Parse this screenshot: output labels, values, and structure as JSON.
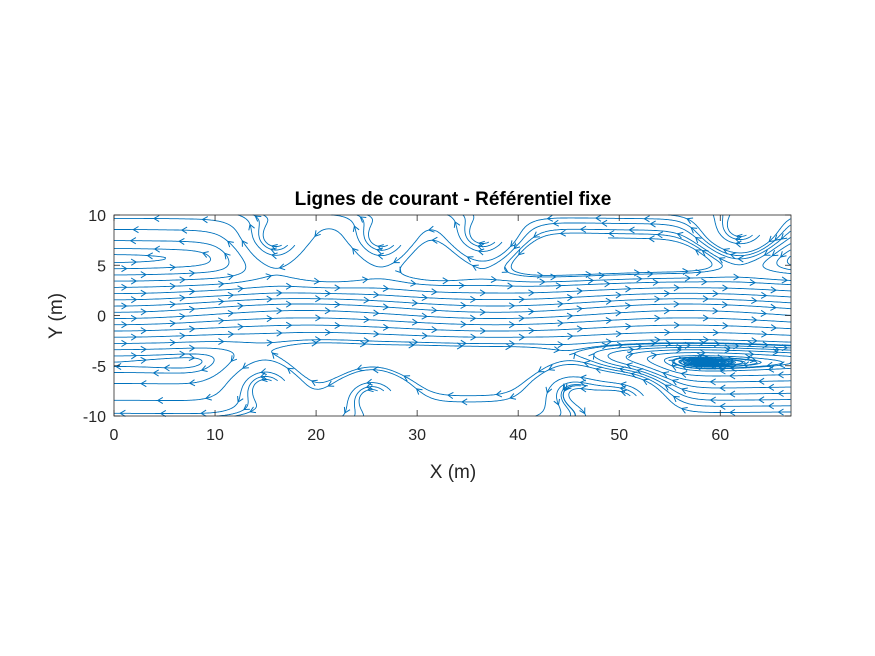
{
  "chart_data": {
    "type": "streamline",
    "title": "Lignes de courant - Référentiel fixe",
    "xlabel": "X (m)",
    "ylabel": "Y (m)",
    "xlim": [
      0,
      67
    ],
    "ylim": [
      -10,
      10
    ],
    "xticks": [
      "0",
      "10",
      "20",
      "30",
      "40",
      "50",
      "60"
    ],
    "yticks": [
      "10",
      "5",
      "0",
      "-5",
      "-10"
    ],
    "grid": false,
    "line_color": "#0072BD",
    "flow": {
      "core_band_y": [
        -4,
        5
      ],
      "core_direction": "+x",
      "outer_direction": "-x",
      "upper_vortices": [
        {
          "x": 16,
          "y": 7
        },
        {
          "x": 26.5,
          "y": 7
        },
        {
          "x": 36.5,
          "y": 7.3
        },
        {
          "x": 62,
          "y": 8
        }
      ],
      "lower_vortices": [
        {
          "x": 15,
          "y": -6.5
        },
        {
          "x": 25.5,
          "y": -7.5
        },
        {
          "x": 45,
          "y": -7
        },
        {
          "x": 50.5,
          "y": -8
        }
      ]
    }
  }
}
